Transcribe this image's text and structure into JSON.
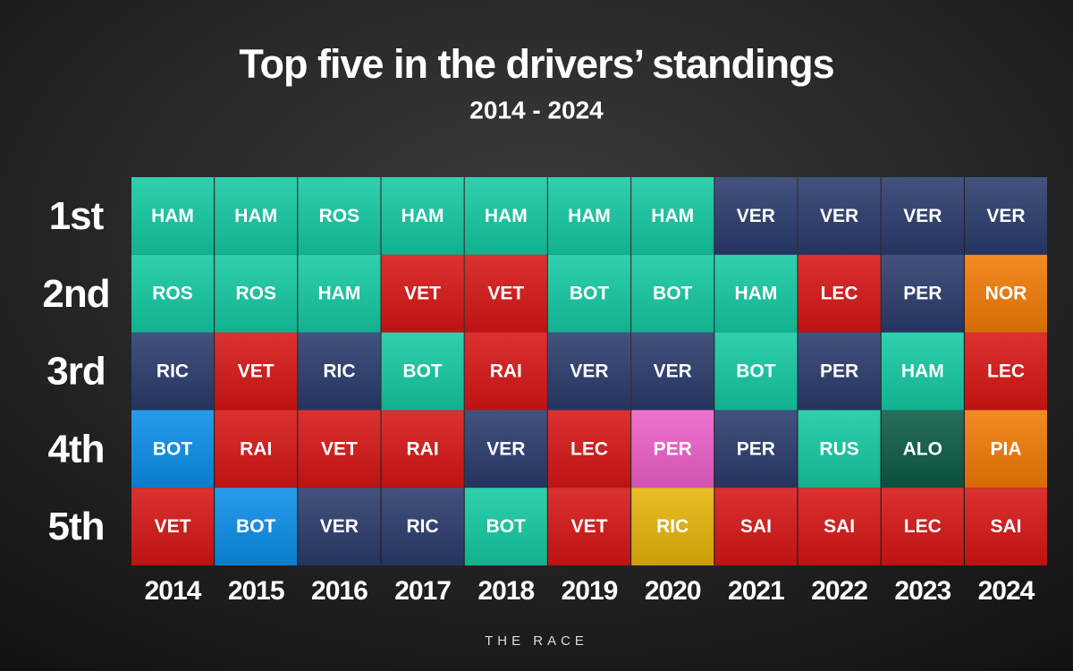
{
  "title": "Top five in the drivers’ standings",
  "subtitle": "2014 - 2024",
  "positions": [
    "1st",
    "2nd",
    "3rd",
    "4th",
    "5th"
  ],
  "team_colors": {
    "mercedes": "#14c9a2",
    "ferrari": "#d61515",
    "redbull": "#2a3a6c",
    "williams": "#0a8ee8",
    "racingpoint": "#ec5fc8",
    "renault": "#e7b40a",
    "mclaren": "#f27a06",
    "astonmartin": "#0c5a46"
  },
  "seasons": [
    {
      "year": "2014",
      "drivers": [
        {
          "code": "HAM",
          "team": "mercedes"
        },
        {
          "code": "ROS",
          "team": "mercedes"
        },
        {
          "code": "RIC",
          "team": "redbull"
        },
        {
          "code": "BOT",
          "team": "williams"
        },
        {
          "code": "VET",
          "team": "ferrari"
        }
      ]
    },
    {
      "year": "2015",
      "drivers": [
        {
          "code": "HAM",
          "team": "mercedes"
        },
        {
          "code": "ROS",
          "team": "mercedes"
        },
        {
          "code": "VET",
          "team": "ferrari"
        },
        {
          "code": "RAI",
          "team": "ferrari"
        },
        {
          "code": "BOT",
          "team": "williams"
        }
      ]
    },
    {
      "year": "2016",
      "drivers": [
        {
          "code": "ROS",
          "team": "mercedes"
        },
        {
          "code": "HAM",
          "team": "mercedes"
        },
        {
          "code": "RIC",
          "team": "redbull"
        },
        {
          "code": "VET",
          "team": "ferrari"
        },
        {
          "code": "VER",
          "team": "redbull"
        }
      ]
    },
    {
      "year": "2017",
      "drivers": [
        {
          "code": "HAM",
          "team": "mercedes"
        },
        {
          "code": "VET",
          "team": "ferrari"
        },
        {
          "code": "BOT",
          "team": "mercedes"
        },
        {
          "code": "RAI",
          "team": "ferrari"
        },
        {
          "code": "RIC",
          "team": "redbull"
        }
      ]
    },
    {
      "year": "2018",
      "drivers": [
        {
          "code": "HAM",
          "team": "mercedes"
        },
        {
          "code": "VET",
          "team": "ferrari"
        },
        {
          "code": "RAI",
          "team": "ferrari"
        },
        {
          "code": "VER",
          "team": "redbull"
        },
        {
          "code": "BOT",
          "team": "mercedes"
        }
      ]
    },
    {
      "year": "2019",
      "drivers": [
        {
          "code": "HAM",
          "team": "mercedes"
        },
        {
          "code": "BOT",
          "team": "mercedes"
        },
        {
          "code": "VER",
          "team": "redbull"
        },
        {
          "code": "LEC",
          "team": "ferrari"
        },
        {
          "code": "VET",
          "team": "ferrari"
        }
      ]
    },
    {
      "year": "2020",
      "drivers": [
        {
          "code": "HAM",
          "team": "mercedes"
        },
        {
          "code": "BOT",
          "team": "mercedes"
        },
        {
          "code": "VER",
          "team": "redbull"
        },
        {
          "code": "PER",
          "team": "racingpoint"
        },
        {
          "code": "RIC",
          "team": "renault"
        }
      ]
    },
    {
      "year": "2021",
      "drivers": [
        {
          "code": "VER",
          "team": "redbull"
        },
        {
          "code": "HAM",
          "team": "mercedes"
        },
        {
          "code": "BOT",
          "team": "mercedes"
        },
        {
          "code": "PER",
          "team": "redbull"
        },
        {
          "code": "SAI",
          "team": "ferrari"
        }
      ]
    },
    {
      "year": "2022",
      "drivers": [
        {
          "code": "VER",
          "team": "redbull"
        },
        {
          "code": "LEC",
          "team": "ferrari"
        },
        {
          "code": "PER",
          "team": "redbull"
        },
        {
          "code": "RUS",
          "team": "mercedes"
        },
        {
          "code": "SAI",
          "team": "ferrari"
        }
      ]
    },
    {
      "year": "2023",
      "drivers": [
        {
          "code": "VER",
          "team": "redbull"
        },
        {
          "code": "PER",
          "team": "redbull"
        },
        {
          "code": "HAM",
          "team": "mercedes"
        },
        {
          "code": "ALO",
          "team": "astonmartin"
        },
        {
          "code": "LEC",
          "team": "ferrari"
        }
      ]
    },
    {
      "year": "2024",
      "drivers": [
        {
          "code": "VER",
          "team": "redbull"
        },
        {
          "code": "NOR",
          "team": "mclaren"
        },
        {
          "code": "LEC",
          "team": "ferrari"
        },
        {
          "code": "PIA",
          "team": "mclaren"
        },
        {
          "code": "SAI",
          "team": "ferrari"
        }
      ]
    }
  ],
  "footer": "THE RACE"
}
